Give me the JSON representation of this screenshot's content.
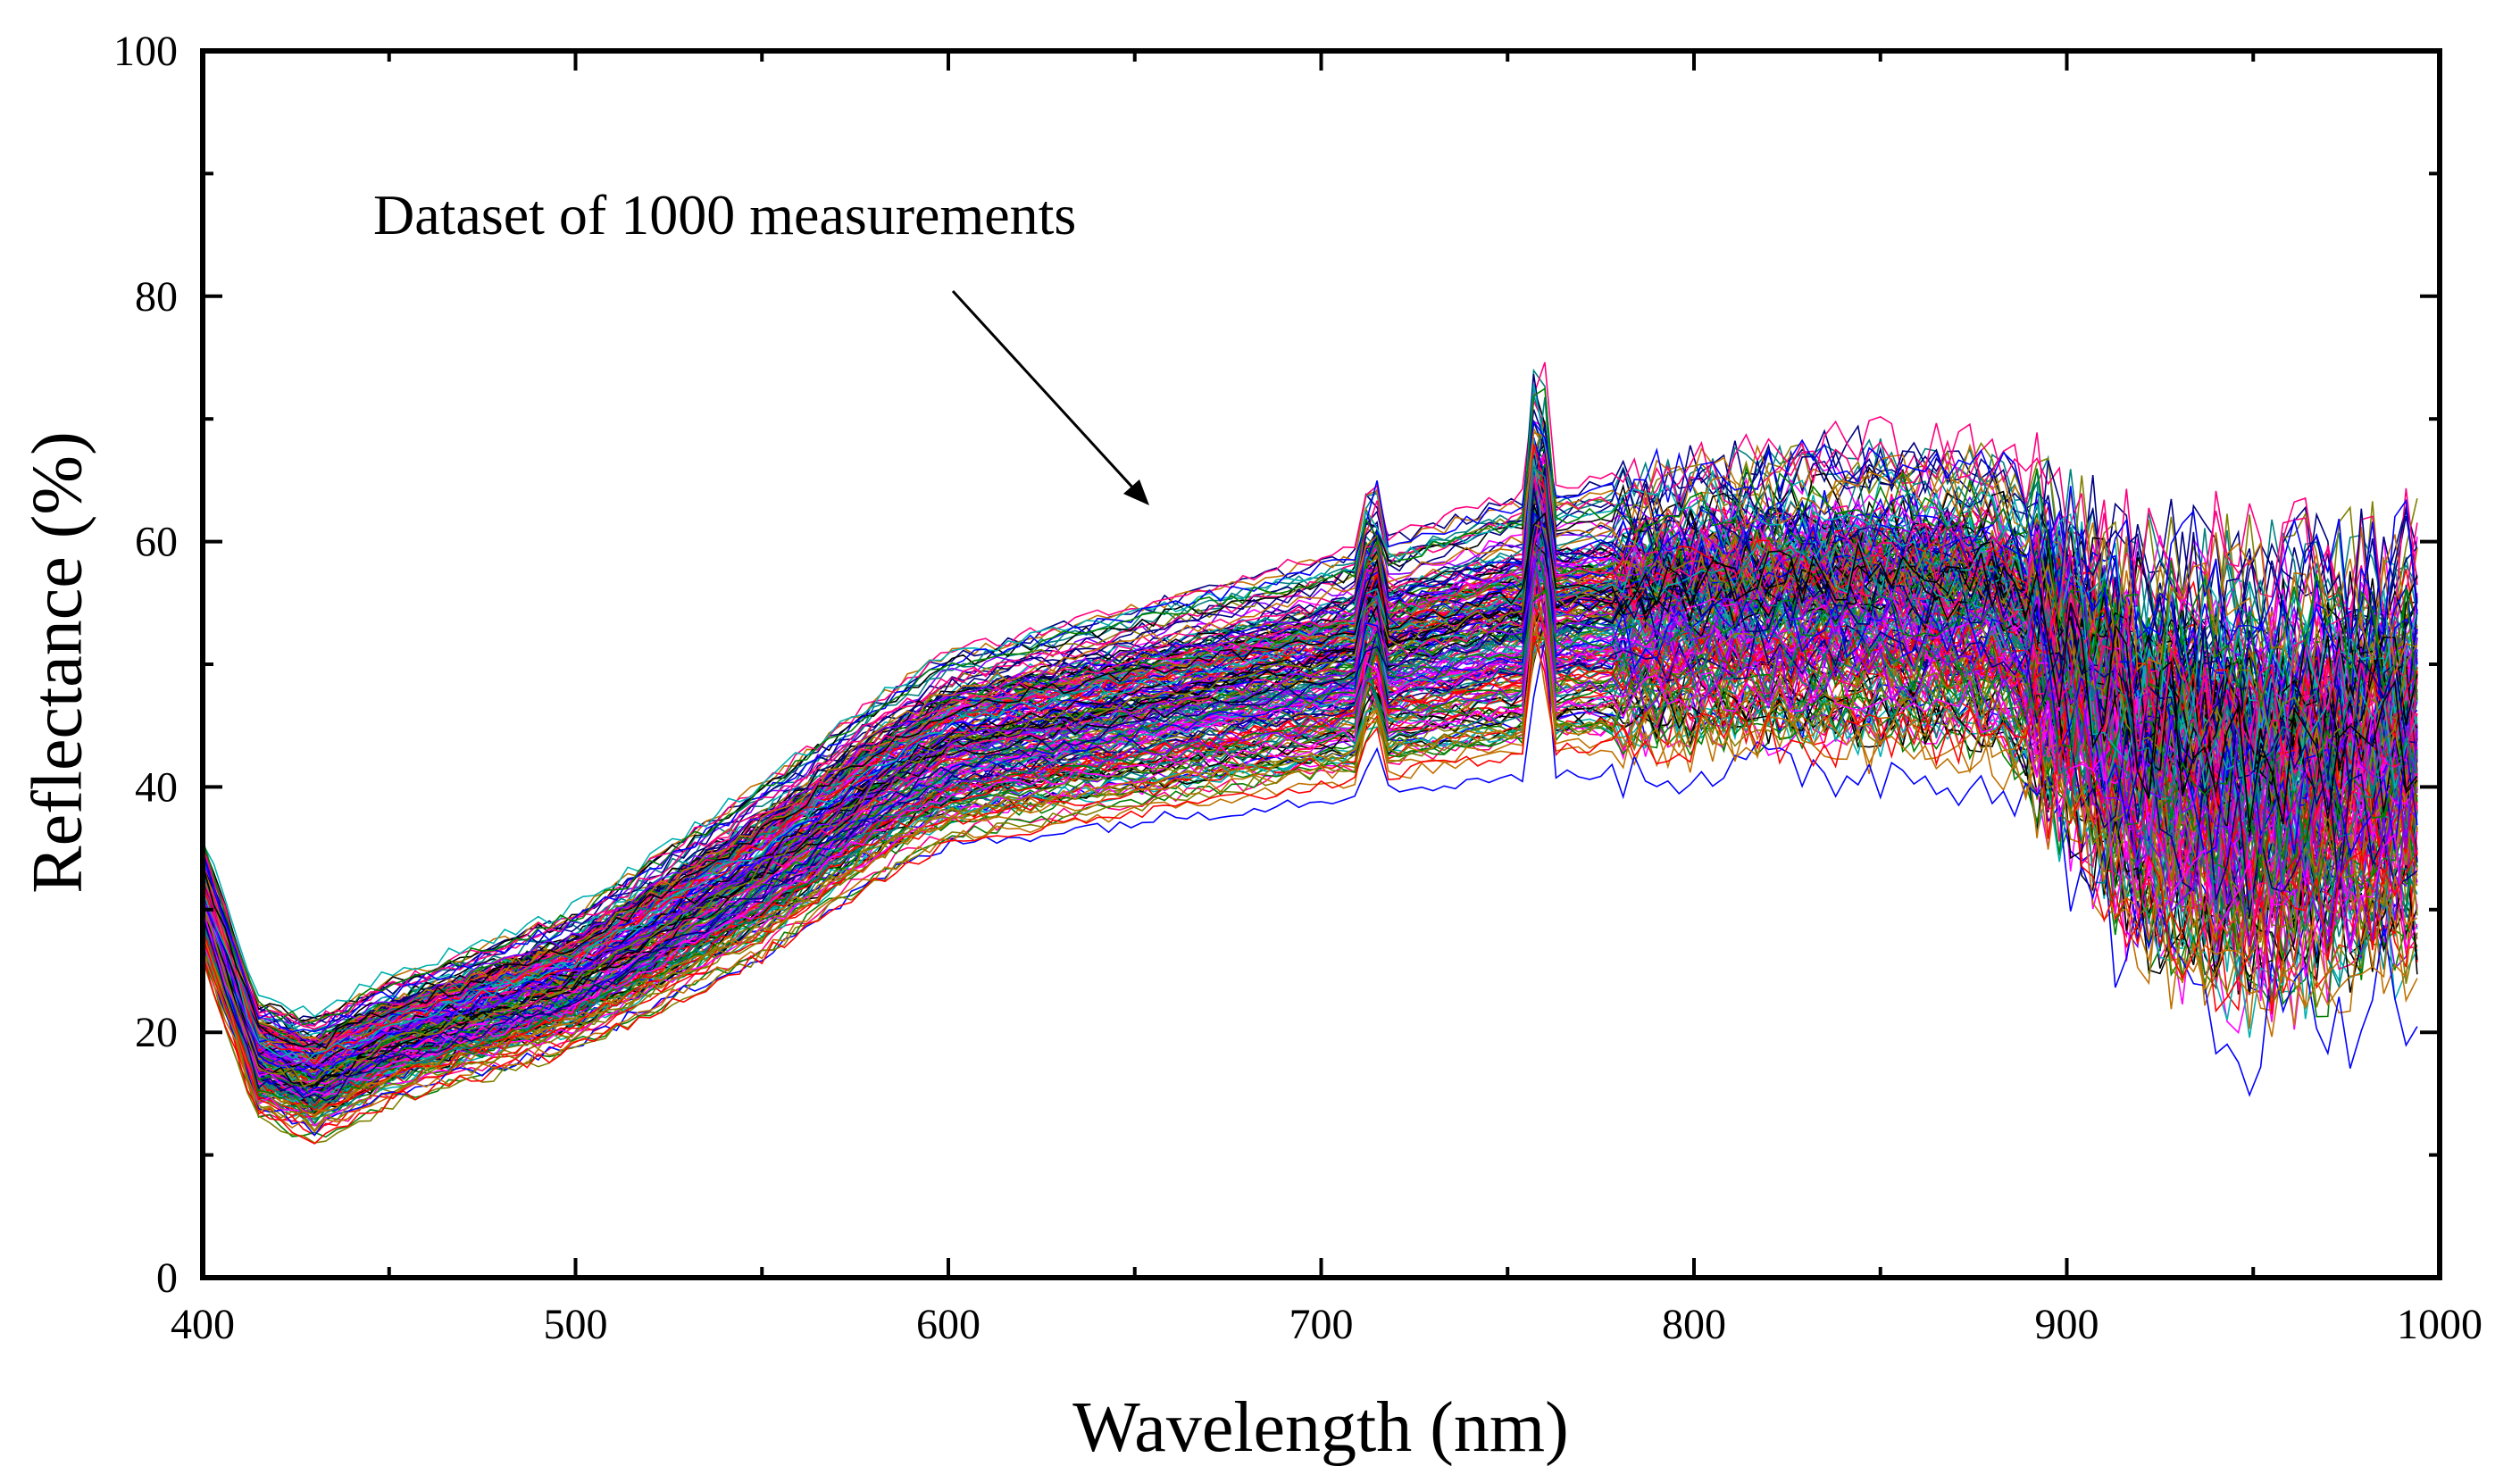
{
  "chart_data": {
    "type": "line",
    "title": "",
    "xlabel": "Wavelength (nm)",
    "ylabel": "Reflectance (%)",
    "xlim": [
      400,
      1000
    ],
    "ylim": [
      0,
      100
    ],
    "xticks": [
      400,
      500,
      600,
      700,
      800,
      900,
      1000
    ],
    "yticks": [
      0,
      20,
      40,
      60,
      80,
      100
    ],
    "grid": false,
    "legend": "none",
    "annotation": {
      "text": "Dataset of 1000 measurements",
      "arrow_to": [
        650,
        63
      ]
    },
    "n_series": 1000,
    "wavelength_range": [
      400,
      995
    ],
    "envelope": {
      "wavelength": [
        400,
        415,
        430,
        450,
        500,
        550,
        580,
        600,
        650,
        700,
        750,
        800,
        850,
        880,
        900,
        920,
        950,
        995
      ],
      "mean": [
        30,
        20,
        17,
        19,
        24,
        32,
        40,
        44,
        47,
        50,
        53,
        55,
        55,
        54,
        50,
        45,
        43,
        44
      ],
      "min": [
        25,
        12,
        10,
        13,
        17,
        24,
        30,
        33,
        35,
        37,
        39,
        40,
        40,
        40,
        35,
        25,
        20,
        25
      ],
      "max": [
        37,
        24,
        23,
        26,
        32,
        43,
        50,
        54,
        58,
        62,
        67,
        70,
        71,
        70,
        65,
        62,
        62,
        62
      ]
    },
    "spikes": [
      {
        "wavelength": 714,
        "height": 5
      },
      {
        "wavelength": 759,
        "height": 10
      }
    ],
    "colors": [
      "#000000",
      "#ff0000",
      "#0000ff",
      "#008000",
      "#ff00ff",
      "#00b0b0",
      "#808000",
      "#000080",
      "#8000ff",
      "#c07000",
      "#ff0080",
      "#008080"
    ]
  }
}
